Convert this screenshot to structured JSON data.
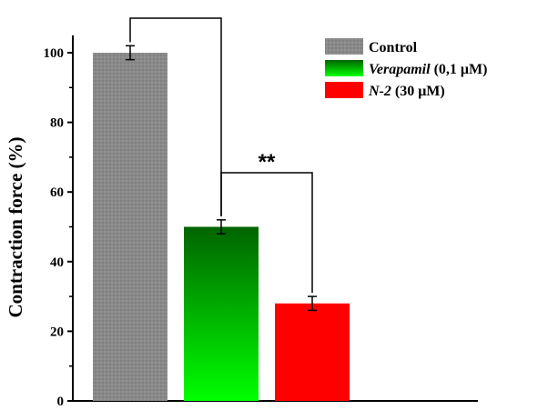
{
  "chart_data": {
    "type": "bar",
    "ylabel": "Contraction force (%)",
    "xlabel": "",
    "ylim": [
      0,
      105
    ],
    "yticks": [
      0,
      20,
      40,
      60,
      80,
      100
    ],
    "grid": false,
    "legend_position": "top-right",
    "series": [
      {
        "name": "Control",
        "name_italic": "",
        "name_suffix": "",
        "value": 100,
        "error": 2.0,
        "color": "#808080"
      },
      {
        "name": "",
        "name_italic": "Verapamil",
        "name_suffix": " (0,1 μM)",
        "value": 50,
        "error": 2.0,
        "color": "#10c010"
      },
      {
        "name": "",
        "name_italic": "N-2",
        "name_suffix": " (30 μM)",
        "value": 28,
        "error": 2.0,
        "color": "#ff0000"
      }
    ],
    "significance": [
      {
        "from": 0,
        "to": 1,
        "label": ""
      },
      {
        "from": 1,
        "to": 2,
        "label": "**"
      }
    ]
  }
}
